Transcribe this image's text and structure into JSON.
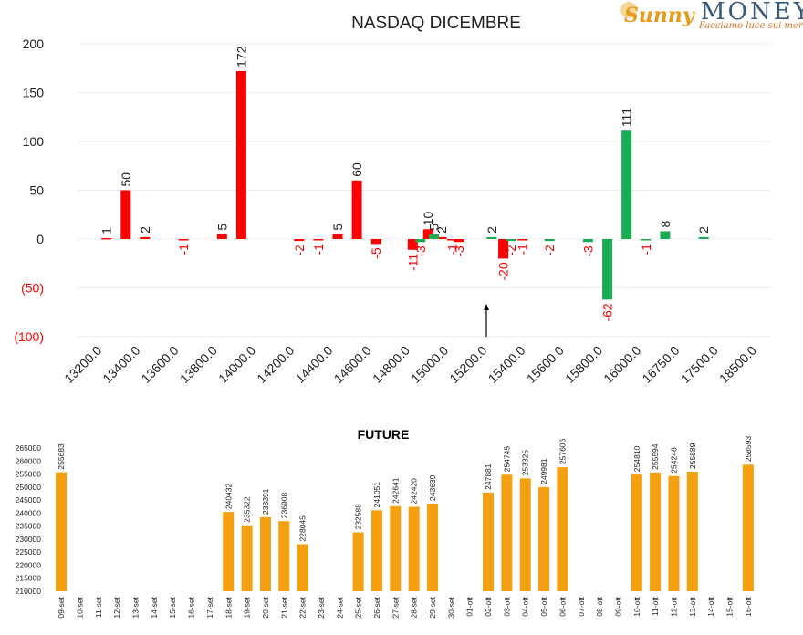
{
  "logo": {
    "brand_prefix": "Sunny",
    "brand_main": "MONEY",
    "tagline": "Facciamo luce sui mercati"
  },
  "colors": {
    "positive_bar": "#1aab55",
    "negative_bar": "#ff0000",
    "future_bar": "#f4a010",
    "negative_axis_text": "#ff0000"
  },
  "chart_data": [
    {
      "type": "bar",
      "title": "NASDAQ DICEMBRE",
      "xlabel": "",
      "ylabel": "",
      "ylim": [
        -100,
        200
      ],
      "yticks": [
        "200",
        "150",
        "100",
        "50",
        "0",
        "(50)",
        "(100)"
      ],
      "ytick_values": [
        200,
        150,
        100,
        50,
        0,
        -50,
        -100
      ],
      "grid": true,
      "legend": "none",
      "categories": [
        "13200.0",
        "13400.0",
        "13600.0",
        "13800.0",
        "14000.0",
        "14200.0",
        "14400.0",
        "14600.0",
        "14800.0",
        "15000.0",
        "15200.0",
        "15400.0",
        "15600.0",
        "15800.0",
        "16000.0",
        "16750.0",
        "17500.0",
        "18500.0"
      ],
      "series": [
        {
          "color": "red",
          "points": [
            {
              "x": 0.75,
              "value": 1
            },
            {
              "x": 1.25,
              "value": 50
            },
            {
              "x": 1.75,
              "value": 2
            },
            {
              "x": 2.75,
              "value": -1
            },
            {
              "x": 3.75,
              "value": 5
            },
            {
              "x": 4.25,
              "value": 172
            },
            {
              "x": 5.75,
              "value": -2
            },
            {
              "x": 6.25,
              "value": -1
            },
            {
              "x": 6.75,
              "value": 5
            },
            {
              "x": 7.25,
              "value": 60
            },
            {
              "x": 7.75,
              "value": -5
            },
            {
              "x": 8.7,
              "value": -11
            },
            {
              "x": 9.1,
              "value": 10
            },
            {
              "x": 9.45,
              "value": 2
            },
            {
              "x": 9.72,
              "value": -1
            },
            {
              "x": 9.9,
              "value": -3
            },
            {
              "x": 11.05,
              "value": -20
            },
            {
              "x": 11.55,
              "value": -1
            }
          ]
        },
        {
          "color": "green",
          "points": [
            {
              "x": 8.9,
              "value": -3
            },
            {
              "x": 9.25,
              "value": 5
            },
            {
              "x": 10.75,
              "value": 2
            },
            {
              "x": 11.25,
              "value": -2
            },
            {
              "x": 12.25,
              "value": -2
            },
            {
              "x": 13.25,
              "value": -3
            },
            {
              "x": 13.75,
              "value": -62
            },
            {
              "x": 14.25,
              "value": 111
            },
            {
              "x": 14.75,
              "value": -1
            },
            {
              "x": 15.25,
              "value": 8
            },
            {
              "x": 16.25,
              "value": 2
            }
          ]
        }
      ]
    },
    {
      "type": "bar",
      "title": "FUTURE",
      "xlabel": "",
      "ylabel": "",
      "ylim": [
        210000,
        265000
      ],
      "yticks": [
        "265000",
        "260000",
        "255000",
        "250000",
        "245000",
        "240000",
        "235000",
        "230000",
        "225000",
        "220000",
        "215000",
        "210000"
      ],
      "ytick_values": [
        265000,
        260000,
        255000,
        250000,
        245000,
        240000,
        235000,
        230000,
        225000,
        220000,
        215000,
        210000
      ],
      "grid": false,
      "legend": "none",
      "categories": [
        "09-set",
        "10-set",
        "11-set",
        "12-set",
        "13-set",
        "14-set",
        "15-set",
        "16-set",
        "17-set",
        "18-set",
        "19-set",
        "20-set",
        "21-set",
        "22-set",
        "23-set",
        "24-set",
        "25-set",
        "26-set",
        "27-set",
        "28-set",
        "29-set",
        "30-set",
        "01-ott",
        "02-ott",
        "03-ott",
        "04-ott",
        "05-ott",
        "06-ott",
        "07-ott",
        "08-ott",
        "09-ott",
        "10-ott",
        "11-ott",
        "12-ott",
        "13-ott",
        "14-ott",
        "15-ott",
        "16-ott"
      ],
      "values": [
        255683,
        null,
        null,
        null,
        null,
        null,
        null,
        null,
        null,
        240432,
        235322,
        238391,
        236908,
        228045,
        null,
        null,
        232588,
        241051,
        242641,
        242420,
        243639,
        null,
        null,
        247881,
        254745,
        253325,
        249981,
        257606,
        null,
        null,
        null,
        254810,
        255594,
        254246,
        255889,
        null,
        null,
        258593
      ]
    }
  ]
}
